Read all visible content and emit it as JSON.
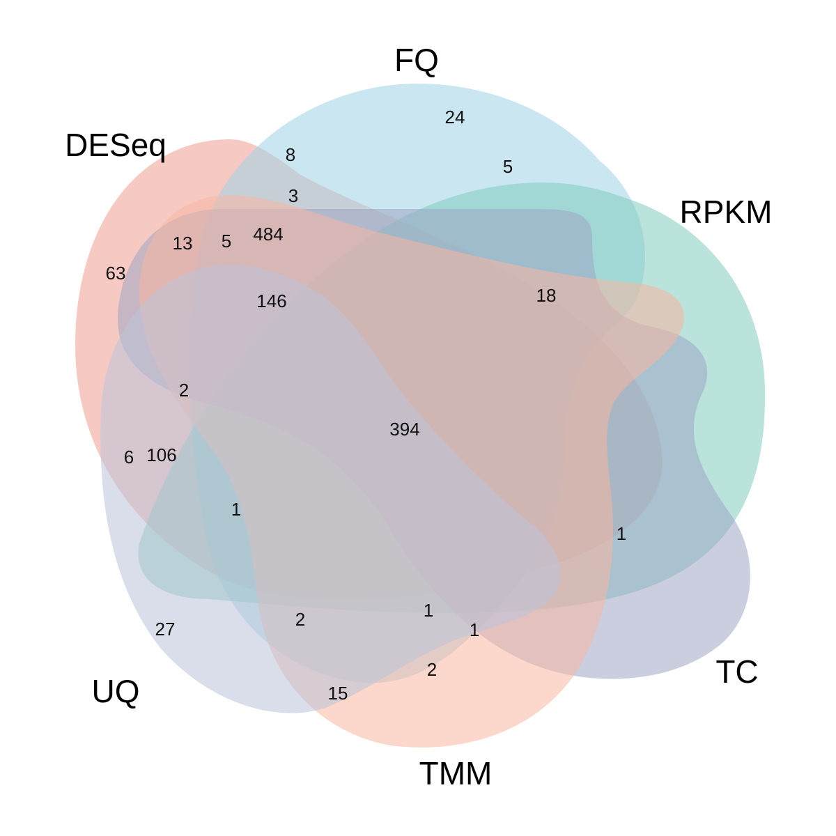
{
  "chart_data": {
    "type": "venn",
    "sets": [
      {
        "name": "FQ",
        "color": "#9ed4e6"
      },
      {
        "name": "RPKM",
        "color": "#7fccbe"
      },
      {
        "name": "TC",
        "color": "#9ea6c4"
      },
      {
        "name": "TMM",
        "color": "#f7b7a3"
      },
      {
        "name": "UQ",
        "color": "#bcc3d9"
      },
      {
        "name": "DESeq",
        "color": "#ef9c92"
      }
    ],
    "region_counts": [
      "24",
      "5",
      "8",
      "3",
      "484",
      "13",
      "5",
      "63",
      "146",
      "18",
      "2",
      "394",
      "6",
      "106",
      "1",
      "1",
      "27",
      "2",
      "1",
      "1",
      "2",
      "15"
    ]
  }
}
